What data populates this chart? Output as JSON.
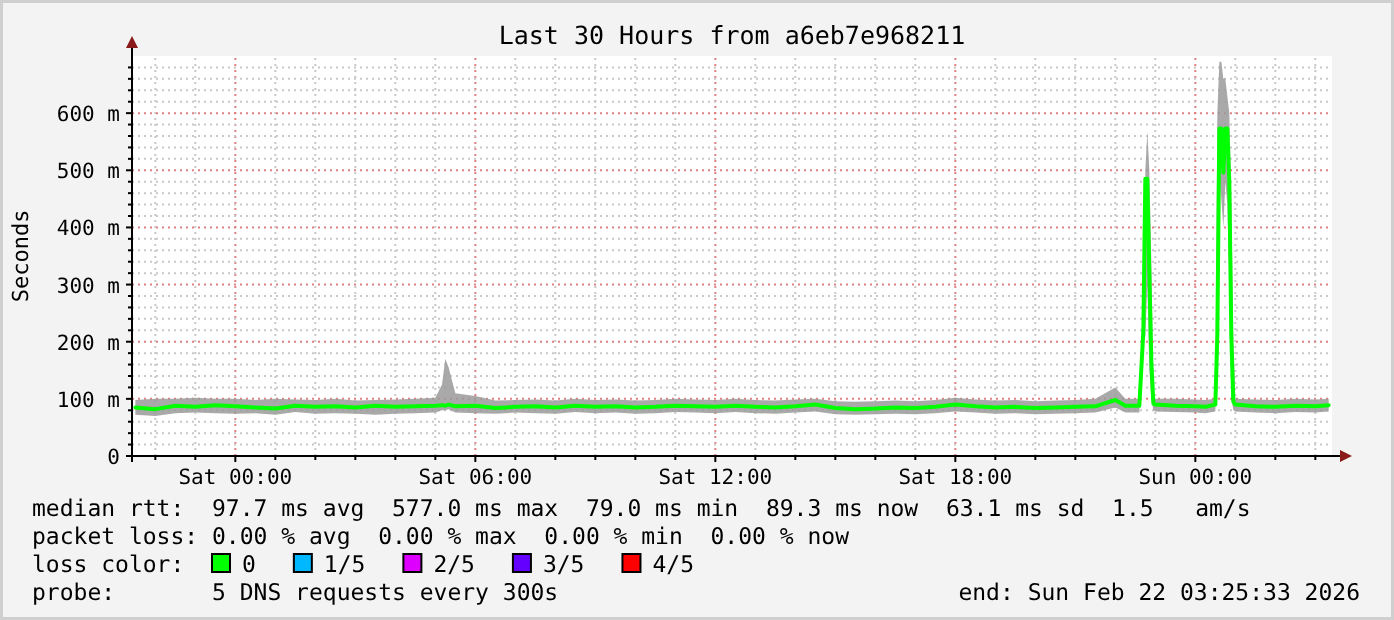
{
  "chart_data": {
    "type": "line",
    "title": "Last 30 Hours from a6eb7e968211",
    "ylabel": "Seconds",
    "x": [
      "2026-02-20T21:30",
      "2026-02-20T22:00",
      "2026-02-20T22:30",
      "2026-02-20T23:00",
      "2026-02-20T23:30",
      "2026-02-21T00:00",
      "2026-02-21T00:30",
      "2026-02-21T01:00",
      "2026-02-21T01:30",
      "2026-02-21T02:00",
      "2026-02-21T02:30",
      "2026-02-21T03:00",
      "2026-02-21T03:30",
      "2026-02-21T04:00",
      "2026-02-21T04:30",
      "2026-02-21T05:00",
      "2026-02-21T05:10",
      "2026-02-21T05:15",
      "2026-02-21T05:20",
      "2026-02-21T05:30",
      "2026-02-21T06:00",
      "2026-02-21T06:30",
      "2026-02-21T07:00",
      "2026-02-21T07:30",
      "2026-02-21T08:00",
      "2026-02-21T08:30",
      "2026-02-21T09:00",
      "2026-02-21T09:30",
      "2026-02-21T10:00",
      "2026-02-21T10:30",
      "2026-02-21T11:00",
      "2026-02-21T11:30",
      "2026-02-21T12:00",
      "2026-02-21T12:30",
      "2026-02-21T13:00",
      "2026-02-21T13:30",
      "2026-02-21T14:00",
      "2026-02-21T14:30",
      "2026-02-21T15:00",
      "2026-02-21T15:30",
      "2026-02-21T16:00",
      "2026-02-21T16:30",
      "2026-02-21T17:00",
      "2026-02-21T17:30",
      "2026-02-21T18:00",
      "2026-02-21T18:30",
      "2026-02-21T19:00",
      "2026-02-21T19:30",
      "2026-02-21T20:00",
      "2026-02-21T20:30",
      "2026-02-21T21:00",
      "2026-02-21T21:30",
      "2026-02-21T22:00",
      "2026-02-21T22:15",
      "2026-02-21T22:36",
      "2026-02-21T22:42",
      "2026-02-21T22:45",
      "2026-02-21T22:48",
      "2026-02-21T22:51",
      "2026-02-21T22:54",
      "2026-02-21T22:57",
      "2026-02-21T23:00",
      "2026-02-21T23:30",
      "2026-02-22T00:00",
      "2026-02-22T00:15",
      "2026-02-22T00:30",
      "2026-02-22T00:33",
      "2026-02-22T00:36",
      "2026-02-22T00:39",
      "2026-02-22T00:42",
      "2026-02-22T00:45",
      "2026-02-22T00:48",
      "2026-02-22T00:51",
      "2026-02-22T00:54",
      "2026-02-22T00:57",
      "2026-02-22T01:00",
      "2026-02-22T01:30",
      "2026-02-22T02:00",
      "2026-02-22T02:30",
      "2026-02-22T03:00",
      "2026-02-22T03:20"
    ],
    "series": [
      {
        "name": "0",
        "color": "#00ff00",
        "values": [
          85,
          82,
          88,
          86,
          89,
          87,
          85,
          83,
          88,
          86,
          87,
          85,
          88,
          86,
          87,
          88,
          89,
          88,
          90,
          87,
          88,
          84,
          86,
          87,
          85,
          88,
          86,
          87,
          85,
          86,
          88,
          87,
          86,
          88,
          86,
          85,
          87,
          90,
          84,
          82,
          83,
          85,
          84,
          86,
          90,
          87,
          85,
          86,
          84,
          85,
          86,
          87,
          98,
          88,
          88,
          218,
          485,
          485,
          322,
          166,
          92,
          90,
          88,
          87,
          86,
          90,
          212,
          573,
          573,
          496,
          573,
          573,
          479,
          208,
          95,
          90,
          87,
          86,
          88,
          87,
          89
        ],
        "lower": [
          72,
          70,
          75,
          76,
          75,
          74,
          75,
          72,
          77,
          74,
          75,
          74,
          72,
          74,
          75,
          76,
          80,
          80,
          82,
          76,
          75,
          74,
          76,
          75,
          74,
          77,
          75,
          76,
          74,
          75,
          77,
          76,
          75,
          77,
          75,
          74,
          76,
          78,
          73,
          72,
          73,
          74,
          73,
          75,
          78,
          76,
          74,
          75,
          73,
          74,
          75,
          76,
          85,
          76,
          76,
          200,
          210,
          300,
          150,
          100,
          80,
          78,
          77,
          76,
          75,
          78,
          200,
          490,
          450,
          400,
          480,
          440,
          300,
          100,
          80,
          78,
          76,
          75,
          77,
          76,
          78
        ],
        "upper": [
          98,
          100,
          100,
          102,
          100,
          100,
          98,
          100,
          99,
          98,
          100,
          97,
          98,
          99,
          100,
          102,
          125,
          170,
          155,
          110,
          105,
          97,
          98,
          99,
          97,
          100,
          98,
          99,
          97,
          98,
          100,
          99,
          98,
          100,
          98,
          97,
          99,
          100,
          96,
          95,
          96,
          97,
          96,
          98,
          102,
          99,
          97,
          98,
          96,
          97,
          98,
          100,
          120,
          100,
          100,
          250,
          500,
          568,
          500,
          340,
          110,
          100,
          100,
          99,
          98,
          100,
          600,
          690,
          690,
          660,
          660,
          630,
          600,
          440,
          200,
          100,
          99,
          98,
          100,
          99,
          100
        ]
      },
      {
        "name": "1/5",
        "color": "#00b8ff",
        "values": [
          null,
          null,
          null,
          null,
          null,
          null,
          null,
          null,
          null,
          null,
          null,
          null,
          null,
          null,
          null,
          null,
          null,
          null,
          null,
          null,
          null,
          null,
          null,
          null,
          null,
          null,
          null,
          null,
          null,
          null,
          null,
          null,
          null,
          null,
          null,
          null,
          null,
          null,
          null,
          null,
          null,
          null,
          null,
          null,
          null,
          null,
          null,
          null,
          null,
          null,
          null,
          null,
          null,
          null,
          null,
          null,
          null,
          null,
          null,
          null,
          null,
          null,
          null,
          null,
          null,
          null,
          null,
          null,
          null,
          null,
          null,
          null,
          null,
          null,
          null,
          null,
          null,
          null,
          null,
          null,
          null
        ]
      },
      {
        "name": "2/5",
        "color": "#dd00ff",
        "values": [
          null,
          null,
          null,
          null,
          null,
          null,
          null,
          null,
          null,
          null,
          null,
          null,
          null,
          null,
          null,
          null,
          null,
          null,
          null,
          null,
          null,
          null,
          null,
          null,
          null,
          null,
          null,
          null,
          null,
          null,
          null,
          null,
          null,
          null,
          null,
          null,
          null,
          null,
          null,
          null,
          null,
          null,
          null,
          null,
          null,
          null,
          null,
          null,
          null,
          null,
          null,
          null,
          null,
          null,
          null,
          null,
          null,
          null,
          null,
          null,
          null,
          null,
          null,
          null,
          null,
          null,
          null,
          null,
          null,
          null,
          null,
          null,
          null,
          null,
          null,
          null,
          null,
          null,
          null,
          null,
          null
        ]
      },
      {
        "name": "3/5",
        "color": "#6400ff",
        "values": [
          null,
          null,
          null,
          null,
          null,
          null,
          null,
          null,
          null,
          null,
          null,
          null,
          null,
          null,
          null,
          null,
          null,
          null,
          null,
          null,
          null,
          null,
          null,
          null,
          null,
          null,
          null,
          null,
          null,
          null,
          null,
          null,
          null,
          null,
          null,
          null,
          null,
          null,
          null,
          null,
          null,
          null,
          null,
          null,
          null,
          null,
          null,
          null,
          null,
          null,
          null,
          null,
          null,
          null,
          null,
          null,
          null,
          null,
          null,
          null,
          null,
          null,
          null,
          null,
          null,
          null,
          null,
          null,
          null,
          null,
          null,
          null,
          null,
          null,
          null,
          null,
          null,
          null,
          null,
          null,
          null
        ]
      },
      {
        "name": "4/5",
        "color": "#ff0000",
        "values": [
          null,
          null,
          null,
          null,
          null,
          null,
          null,
          null,
          null,
          null,
          null,
          null,
          null,
          null,
          null,
          null,
          null,
          null,
          null,
          null,
          null,
          null,
          null,
          null,
          null,
          null,
          null,
          null,
          null,
          null,
          null,
          null,
          null,
          null,
          null,
          null,
          null,
          null,
          null,
          null,
          null,
          null,
          null,
          null,
          null,
          null,
          null,
          null,
          null,
          null,
          null,
          null,
          null,
          null,
          null,
          null,
          null,
          null,
          null,
          null,
          null,
          null,
          null,
          null,
          null,
          null,
          null,
          null,
          null,
          null,
          null,
          null,
          null,
          null,
          null,
          null,
          null,
          null,
          null,
          null,
          null
        ]
      }
    ],
    "legend": "bottom",
    "legend_title": "loss color:",
    "xlim": [
      "2026-02-20T21:25",
      "2026-02-22T03:25"
    ],
    "xticks": [
      {
        "value": "2026-02-20T22:00",
        "label": null
      },
      {
        "value": "2026-02-20T23:00",
        "label": null
      },
      {
        "value": "2026-02-21T00:00",
        "label": "Sat 00:00"
      },
      {
        "value": "2026-02-21T01:00",
        "label": null
      },
      {
        "value": "2026-02-21T02:00",
        "label": null
      },
      {
        "value": "2026-02-21T03:00",
        "label": null
      },
      {
        "value": "2026-02-21T04:00",
        "label": null
      },
      {
        "value": "2026-02-21T05:00",
        "label": null
      },
      {
        "value": "2026-02-21T06:00",
        "label": "Sat 06:00"
      },
      {
        "value": "2026-02-21T07:00",
        "label": null
      },
      {
        "value": "2026-02-21T08:00",
        "label": null
      },
      {
        "value": "2026-02-21T09:00",
        "label": null
      },
      {
        "value": "2026-02-21T10:00",
        "label": null
      },
      {
        "value": "2026-02-21T11:00",
        "label": null
      },
      {
        "value": "2026-02-21T12:00",
        "label": "Sat 12:00"
      },
      {
        "value": "2026-02-21T13:00",
        "label": null
      },
      {
        "value": "2026-02-21T14:00",
        "label": null
      },
      {
        "value": "2026-02-21T15:00",
        "label": null
      },
      {
        "value": "2026-02-21T16:00",
        "label": null
      },
      {
        "value": "2026-02-21T17:00",
        "label": null
      },
      {
        "value": "2026-02-21T18:00",
        "label": "Sat 18:00"
      },
      {
        "value": "2026-02-21T19:00",
        "label": null
      },
      {
        "value": "2026-02-21T20:00",
        "label": null
      },
      {
        "value": "2026-02-21T21:00",
        "label": null
      },
      {
        "value": "2026-02-21T22:00",
        "label": null
      },
      {
        "value": "2026-02-21T23:00",
        "label": null
      },
      {
        "value": "2026-02-22T00:00",
        "label": "Sun 00:00"
      },
      {
        "value": "2026-02-22T01:00",
        "label": null
      },
      {
        "value": "2026-02-22T02:00",
        "label": null
      },
      {
        "value": "2026-02-22T03:00",
        "label": null
      }
    ],
    "ylim": [
      0,
      700
    ],
    "yticks": [
      0,
      {
        "value": 20,
        "label": null
      },
      {
        "value": 40,
        "label": null
      },
      {
        "value": 60,
        "label": null
      },
      {
        "value": 80,
        "label": null
      },
      {
        "value": 100,
        "label": "100 m"
      },
      {
        "value": 120,
        "label": null
      },
      {
        "value": 140,
        "label": null
      },
      {
        "value": 160,
        "label": null
      },
      {
        "value": 180,
        "label": null
      },
      {
        "value": 200,
        "label": "200 m"
      },
      {
        "value": 220,
        "label": null
      },
      {
        "value": 240,
        "label": null
      },
      {
        "value": 260,
        "label": null
      },
      {
        "value": 280,
        "label": null
      },
      {
        "value": 300,
        "label": "300 m"
      },
      {
        "value": 320,
        "label": null
      },
      {
        "value": 340,
        "label": null
      },
      {
        "value": 360,
        "label": null
      },
      {
        "value": 380,
        "label": null
      },
      {
        "value": 400,
        "label": "400 m"
      },
      {
        "value": 420,
        "label": null
      },
      {
        "value": 440,
        "label": null
      },
      {
        "value": 460,
        "label": null
      },
      {
        "value": 480,
        "label": null
      },
      {
        "value": 500,
        "label": "500 m"
      },
      {
        "value": 520,
        "label": null
      },
      {
        "value": 540,
        "label": null
      },
      {
        "value": 560,
        "label": null
      },
      {
        "value": 580,
        "label": null
      },
      {
        "value": 600,
        "label": "600 m"
      },
      {
        "value": 620,
        "label": null
      },
      {
        "value": 640,
        "label": null
      },
      {
        "value": 660,
        "label": null
      },
      {
        "value": 680,
        "label": null
      }
    ],
    "grid": true,
    "annotations": [
      "median rtt:  97.7 ms avg  577.0 ms max  79.0 ms min  89.3 ms now  63.1 ms sd  1.5   am/s",
      "packet loss: 0.00 % avg  0.00 % max  0.00 % min  0.00 % now",
      "probe:       5 DNS requests every 300s",
      "end: Sun Feb 22 03:25:33 2026"
    ]
  }
}
